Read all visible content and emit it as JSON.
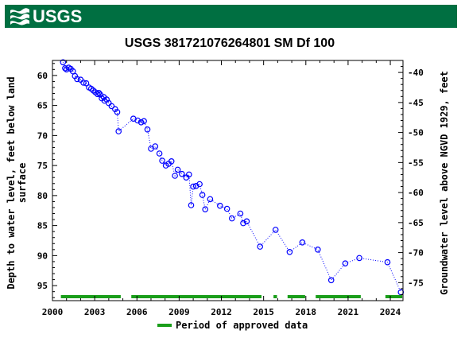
{
  "header": {
    "logo_text": "USGS",
    "background_color": "#006f41"
  },
  "chart_data": {
    "type": "scatter",
    "title": "USGS 381721076264801 SM Df 100",
    "ylabel_left": [
      "Depth to water level, feet below land",
      "surface"
    ],
    "ylabel_right": "Groundwater level above NGVD 1929, feet",
    "x_ticks": [
      "2000",
      "2003",
      "2006",
      "2009",
      "2012",
      "2015",
      "2018",
      "2021",
      "2024"
    ],
    "x_tick_values": [
      2000,
      2003,
      2006,
      2009,
      2012,
      2015,
      2018,
      2021,
      2024
    ],
    "xlim": [
      2000,
      2024.9
    ],
    "y_left_ticks": [
      "60",
      "65",
      "70",
      "75",
      "80",
      "85",
      "90",
      "95"
    ],
    "y_left_tick_values": [
      60,
      65,
      70,
      75,
      80,
      85,
      90,
      95
    ],
    "y_right_ticks": [
      "-40",
      "-45",
      "-50",
      "-55",
      "-60",
      "-65",
      "-70",
      "-75"
    ],
    "y_right_tick_values": [
      -40,
      -45,
      -50,
      -55,
      -60,
      -65,
      -70,
      -75
    ],
    "ylim_left": [
      57.5,
      97.5
    ],
    "y_left_inverted": true,
    "datum_offset_ft": 19.5,
    "marker_color": "#0000ff",
    "approved_color": "#1a9e1a",
    "legend": {
      "label": "Period of approved data",
      "position": "bottom"
    },
    "points": [
      {
        "x": 2000.75,
        "y": 57.8
      },
      {
        "x": 2000.9,
        "y": 58.8
      },
      {
        "x": 2001.0,
        "y": 59.0
      },
      {
        "x": 2001.15,
        "y": 58.7
      },
      {
        "x": 2001.3,
        "y": 58.9
      },
      {
        "x": 2001.45,
        "y": 59.3
      },
      {
        "x": 2001.6,
        "y": 60.1
      },
      {
        "x": 2001.75,
        "y": 60.6
      },
      {
        "x": 2002.0,
        "y": 60.7
      },
      {
        "x": 2002.2,
        "y": 61.2
      },
      {
        "x": 2002.4,
        "y": 61.3
      },
      {
        "x": 2002.6,
        "y": 62.0
      },
      {
        "x": 2002.75,
        "y": 62.2
      },
      {
        "x": 2002.9,
        "y": 62.5
      },
      {
        "x": 2003.05,
        "y": 62.8
      },
      {
        "x": 2003.2,
        "y": 63.1
      },
      {
        "x": 2003.3,
        "y": 62.9
      },
      {
        "x": 2003.4,
        "y": 63.2
      },
      {
        "x": 2003.5,
        "y": 63.8
      },
      {
        "x": 2003.65,
        "y": 63.6
      },
      {
        "x": 2003.7,
        "y": 64.2
      },
      {
        "x": 2003.85,
        "y": 64.0
      },
      {
        "x": 2004.0,
        "y": 64.6
      },
      {
        "x": 2004.2,
        "y": 65.1
      },
      {
        "x": 2004.45,
        "y": 65.6
      },
      {
        "x": 2004.6,
        "y": 66.1
      },
      {
        "x": 2004.7,
        "y": 69.3
      },
      {
        "x": 2005.75,
        "y": 67.2
      },
      {
        "x": 2006.05,
        "y": 67.5
      },
      {
        "x": 2006.3,
        "y": 67.8
      },
      {
        "x": 2006.5,
        "y": 67.6
      },
      {
        "x": 2006.75,
        "y": 69.0
      },
      {
        "x": 2007.0,
        "y": 72.2
      },
      {
        "x": 2007.3,
        "y": 71.8
      },
      {
        "x": 2007.6,
        "y": 73.0
      },
      {
        "x": 2007.8,
        "y": 74.2
      },
      {
        "x": 2008.05,
        "y": 75.0
      },
      {
        "x": 2008.25,
        "y": 74.7
      },
      {
        "x": 2008.45,
        "y": 74.3
      },
      {
        "x": 2008.7,
        "y": 76.7
      },
      {
        "x": 2008.9,
        "y": 75.7
      },
      {
        "x": 2009.2,
        "y": 76.4
      },
      {
        "x": 2009.5,
        "y": 77.0
      },
      {
        "x": 2009.7,
        "y": 76.5
      },
      {
        "x": 2009.85,
        "y": 81.6
      },
      {
        "x": 2010.0,
        "y": 78.5
      },
      {
        "x": 2010.2,
        "y": 78.4
      },
      {
        "x": 2010.45,
        "y": 78.1
      },
      {
        "x": 2010.65,
        "y": 79.9
      },
      {
        "x": 2010.85,
        "y": 82.3
      },
      {
        "x": 2011.2,
        "y": 80.6
      },
      {
        "x": 2011.9,
        "y": 81.7
      },
      {
        "x": 2012.4,
        "y": 82.2
      },
      {
        "x": 2012.75,
        "y": 83.8
      },
      {
        "x": 2013.35,
        "y": 83.0
      },
      {
        "x": 2013.55,
        "y": 84.6
      },
      {
        "x": 2013.8,
        "y": 84.3
      },
      {
        "x": 2014.75,
        "y": 88.5
      },
      {
        "x": 2015.85,
        "y": 85.7
      },
      {
        "x": 2016.85,
        "y": 89.4
      },
      {
        "x": 2017.75,
        "y": 87.8
      },
      {
        "x": 2018.85,
        "y": 89.0
      },
      {
        "x": 2019.8,
        "y": 94.1
      },
      {
        "x": 2020.8,
        "y": 91.3
      },
      {
        "x": 2021.8,
        "y": 90.4
      },
      {
        "x": 2023.8,
        "y": 91.1
      },
      {
        "x": 2024.75,
        "y": 96.1
      }
    ],
    "approved_periods": [
      [
        2000.6,
        2004.85
      ],
      [
        2005.6,
        2014.85
      ],
      [
        2015.7,
        2015.95
      ],
      [
        2016.7,
        2017.95
      ],
      [
        2018.7,
        2021.9
      ],
      [
        2023.65,
        2024.85
      ]
    ]
  }
}
